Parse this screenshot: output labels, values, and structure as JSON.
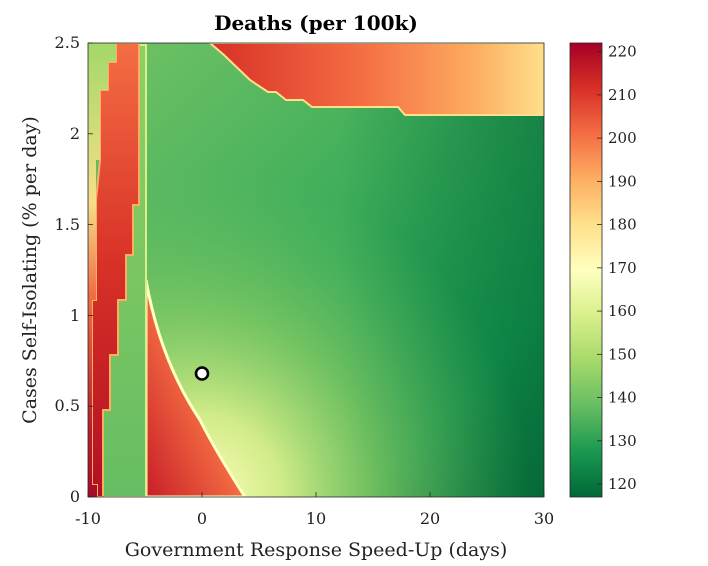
{
  "chart_data": {
    "type": "heatmap",
    "title": "Deaths (per 100k)",
    "xlabel": "Government Response Speed-Up (days)",
    "ylabel": "Cases Self-Isolating (% per day)",
    "xlim": [
      -10,
      30
    ],
    "ylim": [
      0,
      2.5
    ],
    "xticks": [
      "-10",
      "0",
      "10",
      "20",
      "30"
    ],
    "yticks": [
      "0",
      "0.5",
      "1",
      "1.5",
      "2",
      "2.5"
    ],
    "colorbar": {
      "ticks": [
        "120",
        "130",
        "140",
        "150",
        "160",
        "170",
        "180",
        "190",
        "200",
        "210",
        "220"
      ],
      "range": [
        117,
        222
      ],
      "colormap": [
        "#006837",
        "#1a9850",
        "#66bd63",
        "#a6d96a",
        "#d9ef8b",
        "#ffffbf",
        "#fee08b",
        "#fdae61",
        "#f46d43",
        "#d73027",
        "#a50026"
      ]
    },
    "marker": {
      "x": 0,
      "y": 0.68,
      "shape": "circle"
    },
    "regions_approx": [
      {
        "desc": "far-left strip",
        "x": [
          -10,
          -8.5
        ],
        "value_range": [
          150,
          218
        ]
      },
      {
        "desc": "left red band",
        "x": [
          -9,
          -7
        ],
        "value_range": [
          195,
          220
        ]
      },
      {
        "desc": "mid-left green strip",
        "x": [
          -8,
          -5
        ],
        "value_range": [
          135,
          150
        ]
      },
      {
        "desc": "lower-left red wedge",
        "x": [
          -5,
          3
        ],
        "value_range": [
          175,
          210
        ]
      },
      {
        "desc": "upper red region",
        "x": [
          1,
          30
        ],
        "y": [
          2.1,
          2.5
        ],
        "value_range": [
          170,
          205
        ]
      },
      {
        "desc": "main green region",
        "x": [
          -5,
          30
        ],
        "value_range": [
          118,
          160
        ]
      }
    ]
  }
}
